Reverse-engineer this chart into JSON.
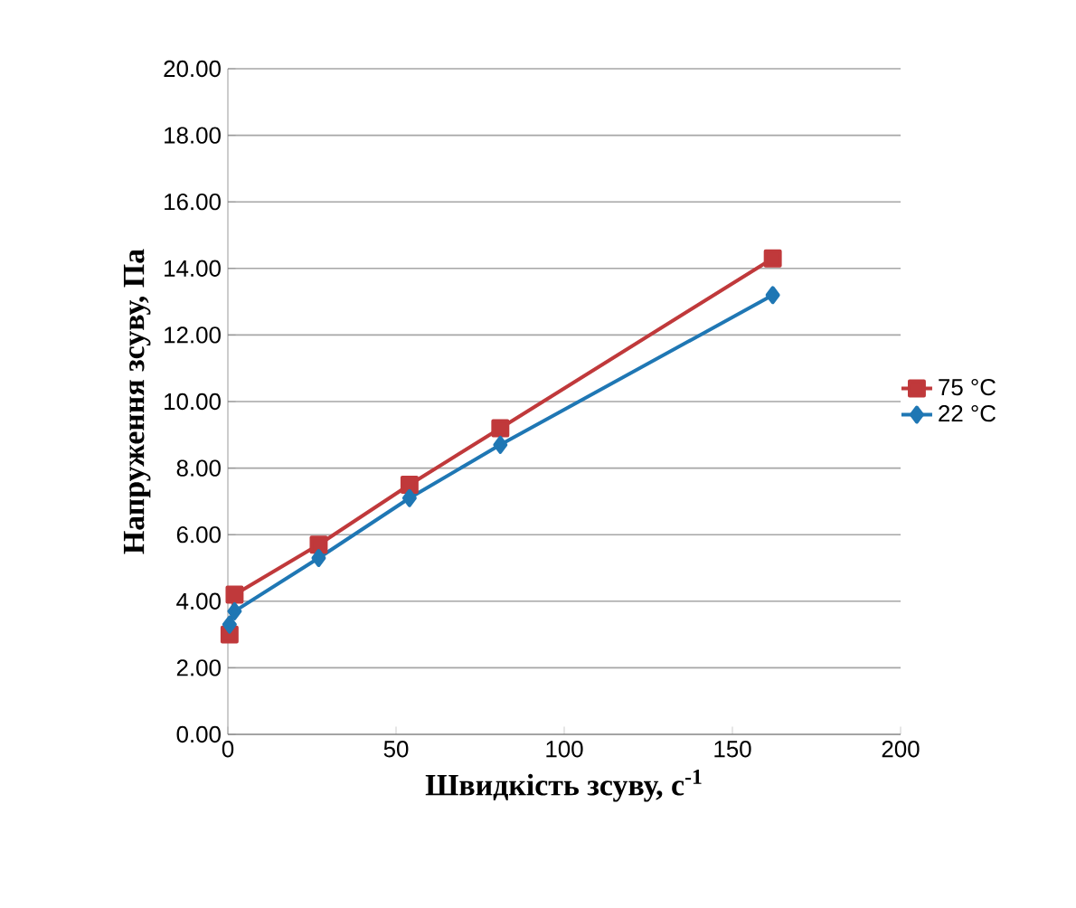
{
  "chart_data": {
    "type": "line",
    "xlabel": "Швидкість зсуву,  с$^{-1}$",
    "ylabel": "Напруження зсуву, Па",
    "x": [
      0.5,
      2,
      27,
      54,
      81,
      162
    ],
    "series": [
      {
        "name": "75 °C",
        "color": "#c0393b",
        "marker": "square",
        "values": [
          3.0,
          4.2,
          5.7,
          7.5,
          9.2,
          14.3
        ]
      },
      {
        "name": "22 °C",
        "color": "#1f77b4",
        "marker": "diamond",
        "values": [
          3.3,
          3.7,
          5.3,
          7.1,
          8.7,
          13.2
        ]
      }
    ],
    "xlim": [
      0,
      200
    ],
    "xticks": [
      0,
      50,
      100,
      150,
      200
    ],
    "ylim": [
      0,
      20
    ],
    "yticks": [
      {
        "value": 0,
        "label": "0.00"
      },
      {
        "value": 2,
        "label": "2.00"
      },
      {
        "value": 4,
        "label": "4.00"
      },
      {
        "value": 6,
        "label": "6.00"
      },
      {
        "value": 8,
        "label": "8.00"
      },
      {
        "value": 10,
        "label": "10.00"
      },
      {
        "value": 12,
        "label": "12.00"
      },
      {
        "value": 14,
        "label": "14.00"
      },
      {
        "value": 16,
        "label": "16.00"
      },
      {
        "value": 18,
        "label": "18.00"
      },
      {
        "value": 20,
        "label": "20.00"
      }
    ],
    "grid": "y",
    "legend": "right",
    "line_style": "solid"
  }
}
